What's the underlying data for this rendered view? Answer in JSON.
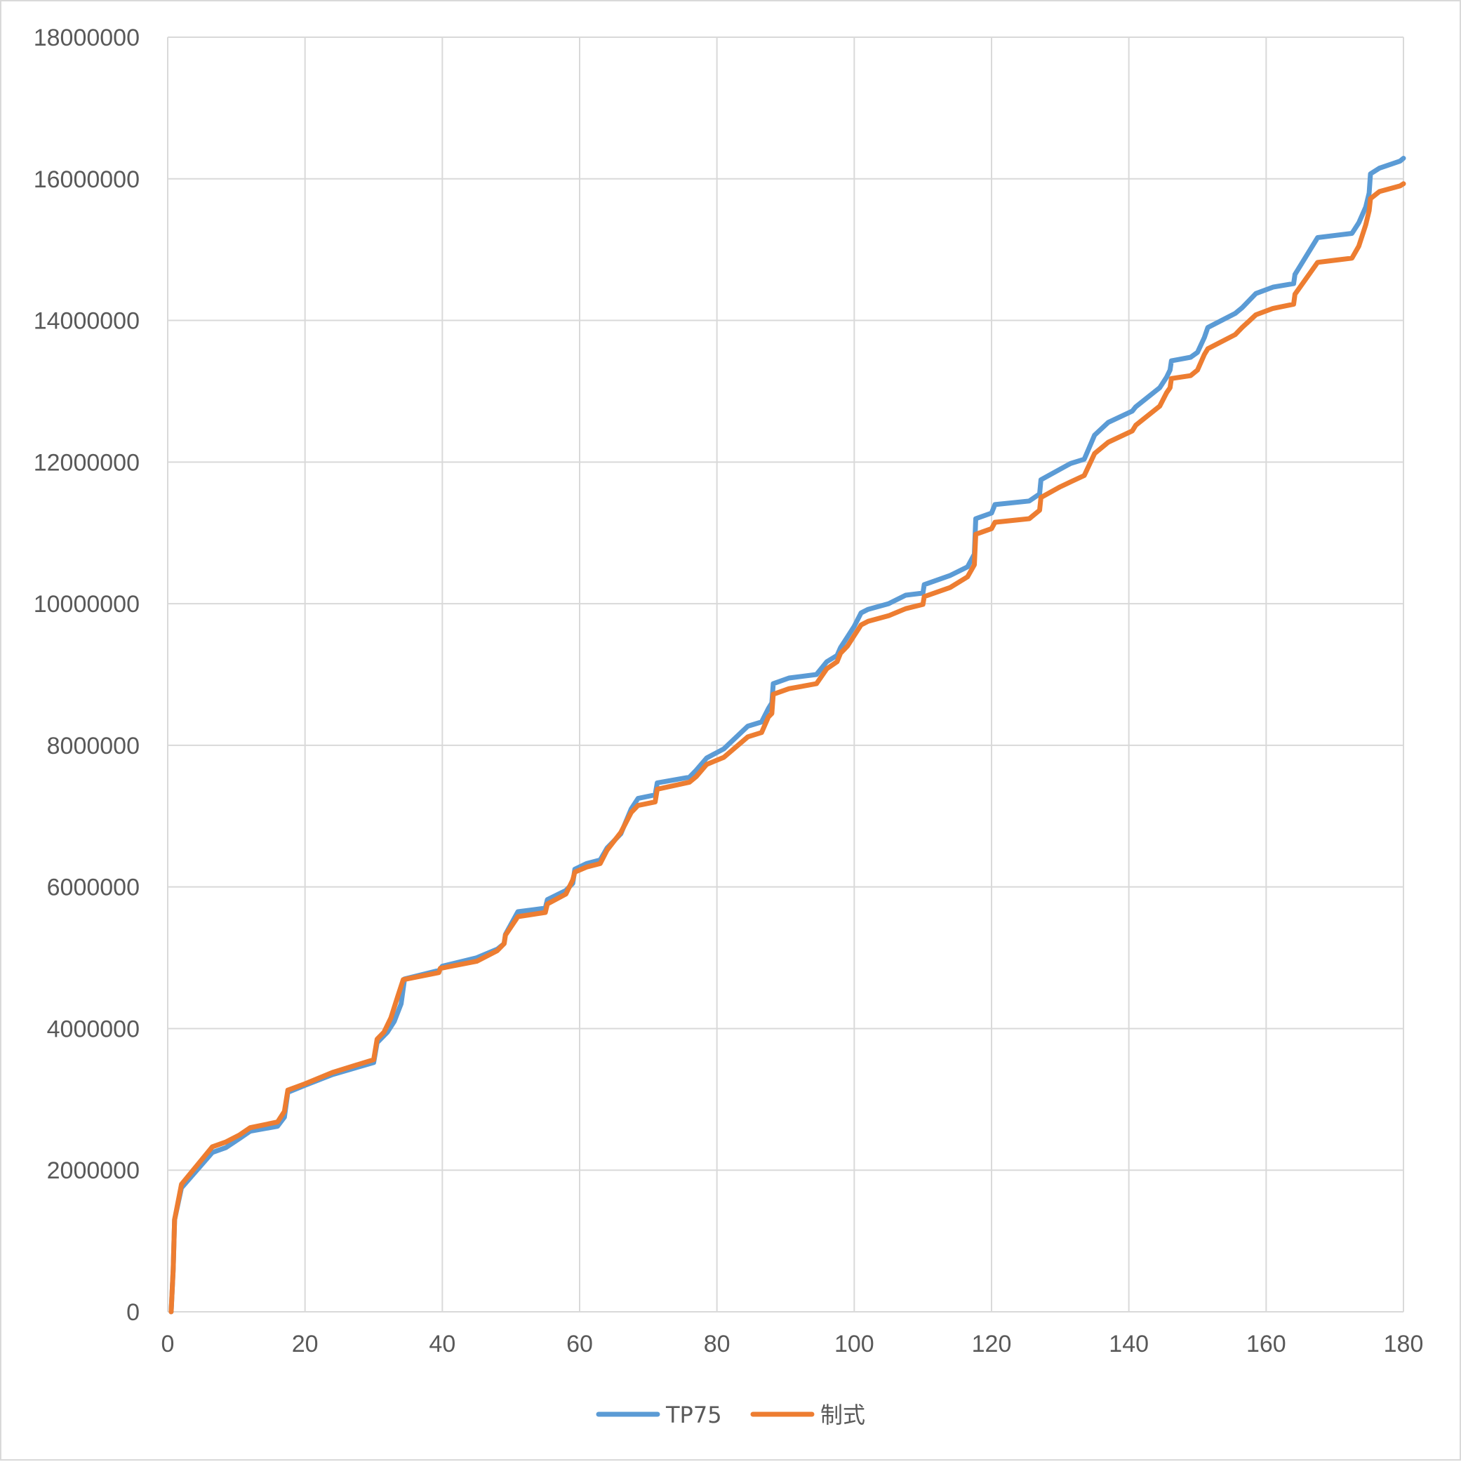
{
  "chart_data": {
    "type": "line",
    "title": "",
    "xlabel": "",
    "ylabel": "",
    "xlim": [
      0,
      180
    ],
    "ylim": [
      0,
      18000000
    ],
    "x_ticks": [
      0,
      20,
      40,
      60,
      80,
      100,
      120,
      140,
      160,
      180
    ],
    "y_ticks": [
      0,
      2000000,
      4000000,
      6000000,
      8000000,
      10000000,
      12000000,
      14000000,
      16000000,
      18000000
    ],
    "x_tick_labels": [
      "0",
      "20",
      "40",
      "60",
      "80",
      "100",
      "120",
      "140",
      "160",
      "180"
    ],
    "y_tick_labels": [
      "0",
      "2000000",
      "4000000",
      "6000000",
      "8000000",
      "10000000",
      "12000000",
      "14000000",
      "16000000",
      "18000000"
    ],
    "grid": true,
    "legend_position": "bottom",
    "series": [
      {
        "name": "TP75",
        "color": "#5b9bd5",
        "points": [
          [
            0.5,
            0
          ],
          [
            0.8,
            600000
          ],
          [
            1.0,
            1300000
          ],
          [
            2.0,
            1750000
          ],
          [
            6.5,
            2250000
          ],
          [
            8.5,
            2320000
          ],
          [
            10.5,
            2450000
          ],
          [
            12,
            2550000
          ],
          [
            16,
            2620000
          ],
          [
            17,
            2750000
          ],
          [
            17.5,
            3100000
          ],
          [
            20,
            3200000
          ],
          [
            24,
            3350000
          ],
          [
            30,
            3520000
          ],
          [
            30.5,
            3800000
          ],
          [
            32,
            3950000
          ],
          [
            33,
            4100000
          ],
          [
            34,
            4350000
          ],
          [
            34.5,
            4700000
          ],
          [
            39.5,
            4820000
          ],
          [
            40,
            4880000
          ],
          [
            45,
            5000000
          ],
          [
            48,
            5120000
          ],
          [
            49,
            5200000
          ],
          [
            49.2,
            5330000
          ],
          [
            51,
            5650000
          ],
          [
            55,
            5700000
          ],
          [
            55.3,
            5820000
          ],
          [
            58,
            5950000
          ],
          [
            59,
            6050000
          ],
          [
            59.3,
            6250000
          ],
          [
            61,
            6330000
          ],
          [
            63,
            6380000
          ],
          [
            64,
            6550000
          ],
          [
            66,
            6750000
          ],
          [
            67.5,
            7100000
          ],
          [
            68.5,
            7250000
          ],
          [
            71,
            7300000
          ],
          [
            71.3,
            7470000
          ],
          [
            76,
            7550000
          ],
          [
            77,
            7650000
          ],
          [
            78.5,
            7820000
          ],
          [
            81,
            7950000
          ],
          [
            84.5,
            8270000
          ],
          [
            86.5,
            8330000
          ],
          [
            87.5,
            8520000
          ],
          [
            88,
            8600000
          ],
          [
            88.2,
            8870000
          ],
          [
            90.5,
            8950000
          ],
          [
            94.5,
            9000000
          ],
          [
            96,
            9180000
          ],
          [
            97.5,
            9270000
          ],
          [
            98,
            9380000
          ],
          [
            99,
            9530000
          ],
          [
            100,
            9680000
          ],
          [
            101,
            9870000
          ],
          [
            102,
            9920000
          ],
          [
            105,
            10000000
          ],
          [
            107.5,
            10120000
          ],
          [
            110,
            10150000
          ],
          [
            110.2,
            10270000
          ],
          [
            114,
            10400000
          ],
          [
            116.5,
            10520000
          ],
          [
            117.5,
            10700000
          ],
          [
            117.7,
            11200000
          ],
          [
            120,
            11280000
          ],
          [
            120.5,
            11400000
          ],
          [
            125.5,
            11450000
          ],
          [
            127,
            11550000
          ],
          [
            127.2,
            11750000
          ],
          [
            130,
            11900000
          ],
          [
            131.5,
            11980000
          ],
          [
            133.5,
            12040000
          ],
          [
            135,
            12380000
          ],
          [
            137,
            12560000
          ],
          [
            140.5,
            12720000
          ],
          [
            141,
            12780000
          ],
          [
            144.5,
            13050000
          ],
          [
            145.5,
            13200000
          ],
          [
            146,
            13300000
          ],
          [
            146.2,
            13430000
          ],
          [
            149,
            13480000
          ],
          [
            150,
            13550000
          ],
          [
            151,
            13760000
          ],
          [
            151.5,
            13900000
          ],
          [
            155.5,
            14100000
          ],
          [
            156.5,
            14180000
          ],
          [
            158.5,
            14380000
          ],
          [
            161,
            14470000
          ],
          [
            164,
            14520000
          ],
          [
            164.2,
            14650000
          ],
          [
            167.5,
            15170000
          ],
          [
            172.5,
            15230000
          ],
          [
            173.5,
            15380000
          ],
          [
            174.5,
            15600000
          ],
          [
            175,
            15800000
          ],
          [
            175.2,
            16070000
          ],
          [
            176.5,
            16150000
          ],
          [
            179.5,
            16250000
          ],
          [
            180,
            16290000
          ]
        ]
      },
      {
        "name": "制式",
        "color": "#ed7d31",
        "points": [
          [
            0.5,
            0
          ],
          [
            0.8,
            600000
          ],
          [
            1.0,
            1300000
          ],
          [
            2.0,
            1800000
          ],
          [
            6.5,
            2330000
          ],
          [
            8.5,
            2400000
          ],
          [
            10.5,
            2500000
          ],
          [
            12,
            2600000
          ],
          [
            16,
            2680000
          ],
          [
            17,
            2830000
          ],
          [
            17.5,
            3130000
          ],
          [
            20,
            3220000
          ],
          [
            24,
            3380000
          ],
          [
            30,
            3560000
          ],
          [
            30.5,
            3850000
          ],
          [
            31.5,
            3950000
          ],
          [
            32.5,
            4150000
          ],
          [
            33.5,
            4450000
          ],
          [
            34.3,
            4690000
          ],
          [
            39.5,
            4790000
          ],
          [
            39.7,
            4850000
          ],
          [
            45,
            4950000
          ],
          [
            48,
            5100000
          ],
          [
            49,
            5200000
          ],
          [
            49.2,
            5320000
          ],
          [
            51,
            5580000
          ],
          [
            55,
            5640000
          ],
          [
            55.3,
            5760000
          ],
          [
            58,
            5900000
          ],
          [
            59,
            6100000
          ],
          [
            59.3,
            6210000
          ],
          [
            61,
            6280000
          ],
          [
            63,
            6330000
          ],
          [
            64,
            6520000
          ],
          [
            66,
            6770000
          ],
          [
            67.5,
            7050000
          ],
          [
            68.5,
            7150000
          ],
          [
            71,
            7200000
          ],
          [
            71.3,
            7380000
          ],
          [
            76,
            7480000
          ],
          [
            77,
            7560000
          ],
          [
            78.5,
            7730000
          ],
          [
            81,
            7830000
          ],
          [
            84.5,
            8120000
          ],
          [
            86.5,
            8180000
          ],
          [
            87.5,
            8400000
          ],
          [
            88,
            8450000
          ],
          [
            88.2,
            8720000
          ],
          [
            90.5,
            8800000
          ],
          [
            94.5,
            8870000
          ],
          [
            96,
            9080000
          ],
          [
            97.5,
            9180000
          ],
          [
            98,
            9300000
          ],
          [
            99,
            9400000
          ],
          [
            100,
            9550000
          ],
          [
            101,
            9700000
          ],
          [
            102,
            9750000
          ],
          [
            105,
            9830000
          ],
          [
            107.5,
            9930000
          ],
          [
            110,
            9990000
          ],
          [
            110.2,
            10100000
          ],
          [
            114,
            10230000
          ],
          [
            116.5,
            10380000
          ],
          [
            117.5,
            10550000
          ],
          [
            117.7,
            10980000
          ],
          [
            120,
            11060000
          ],
          [
            120.5,
            11150000
          ],
          [
            125.5,
            11200000
          ],
          [
            127,
            11320000
          ],
          [
            127.2,
            11500000
          ],
          [
            130,
            11650000
          ],
          [
            131.5,
            11720000
          ],
          [
            133.5,
            11810000
          ],
          [
            135,
            12120000
          ],
          [
            137,
            12280000
          ],
          [
            140.5,
            12440000
          ],
          [
            141,
            12520000
          ],
          [
            144.5,
            12790000
          ],
          [
            145.5,
            12980000
          ],
          [
            146,
            13050000
          ],
          [
            146.2,
            13180000
          ],
          [
            149,
            13220000
          ],
          [
            150,
            13300000
          ],
          [
            151,
            13520000
          ],
          [
            151.5,
            13600000
          ],
          [
            155.5,
            13800000
          ],
          [
            156.5,
            13900000
          ],
          [
            158.5,
            14080000
          ],
          [
            161,
            14170000
          ],
          [
            164,
            14230000
          ],
          [
            164.2,
            14370000
          ],
          [
            167.5,
            14820000
          ],
          [
            172.5,
            14880000
          ],
          [
            173.5,
            15050000
          ],
          [
            174.5,
            15350000
          ],
          [
            175,
            15550000
          ],
          [
            175.2,
            15720000
          ],
          [
            176.5,
            15820000
          ],
          [
            179.5,
            15900000
          ],
          [
            180,
            15930000
          ]
        ]
      }
    ]
  }
}
